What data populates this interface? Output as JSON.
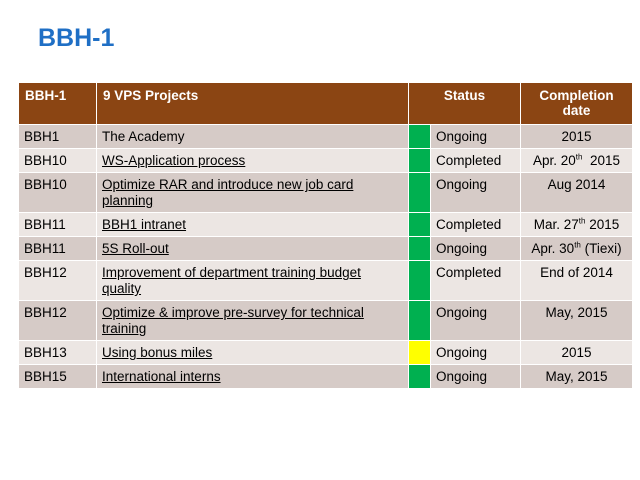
{
  "title": "BBH-1",
  "table": {
    "headers": {
      "col1": "BBH-1",
      "col2": "9 VPS Projects",
      "col3": "Status",
      "col4": "Completion date"
    },
    "colors": {
      "header_bg": "#8b4513",
      "green": "#00b050",
      "yellow": "#ffff00"
    },
    "rows": [
      {
        "unit": "BBH1",
        "project": "The Academy",
        "indicator": "green",
        "status": "Ongoing",
        "date_main": "2015",
        "date_sup": "",
        "date_rest": ""
      },
      {
        "unit": "BBH10",
        "project": "WS-Application process",
        "indicator": "green",
        "status": "Completed",
        "date_main": "Apr. 20",
        "date_sup": "th",
        "date_rest": "  2015"
      },
      {
        "unit": "BBH10",
        "project": "Optimize RAR and introduce new job card planning",
        "indicator": "green",
        "status": "Ongoing",
        "date_main": "Aug 2014",
        "date_sup": "",
        "date_rest": ""
      },
      {
        "unit": "BBH11",
        "project": "BBH1 intranet",
        "indicator": "green",
        "status": "Completed",
        "date_main": "Mar. 27",
        "date_sup": "th",
        "date_rest": " 2015"
      },
      {
        "unit": "BBH11",
        "project": "5S Roll-out",
        "indicator": "green",
        "status": "Ongoing",
        "date_main": "Apr. 30",
        "date_sup": "th",
        "date_rest": " (Tiexi)"
      },
      {
        "unit": "BBH12",
        "project": "Improvement of department training budget quality",
        "indicator": "green",
        "status": "Completed",
        "date_main": "End of 2014",
        "date_sup": "",
        "date_rest": ""
      },
      {
        "unit": "BBH12",
        "project": "Optimize & improve  pre-survey for technical training",
        "indicator": "green",
        "status": "Ongoing",
        "date_main": "May, 2015",
        "date_sup": "",
        "date_rest": ""
      },
      {
        "unit": "BBH13",
        "project": "Using bonus miles",
        "indicator": "yellow",
        "status": "Ongoing",
        "date_main": "2015",
        "date_sup": "",
        "date_rest": ""
      },
      {
        "unit": "BBH15",
        "project": "International interns",
        "indicator": "green",
        "status": "Ongoing",
        "date_main": "May, 2015",
        "date_sup": "",
        "date_rest": ""
      }
    ]
  }
}
